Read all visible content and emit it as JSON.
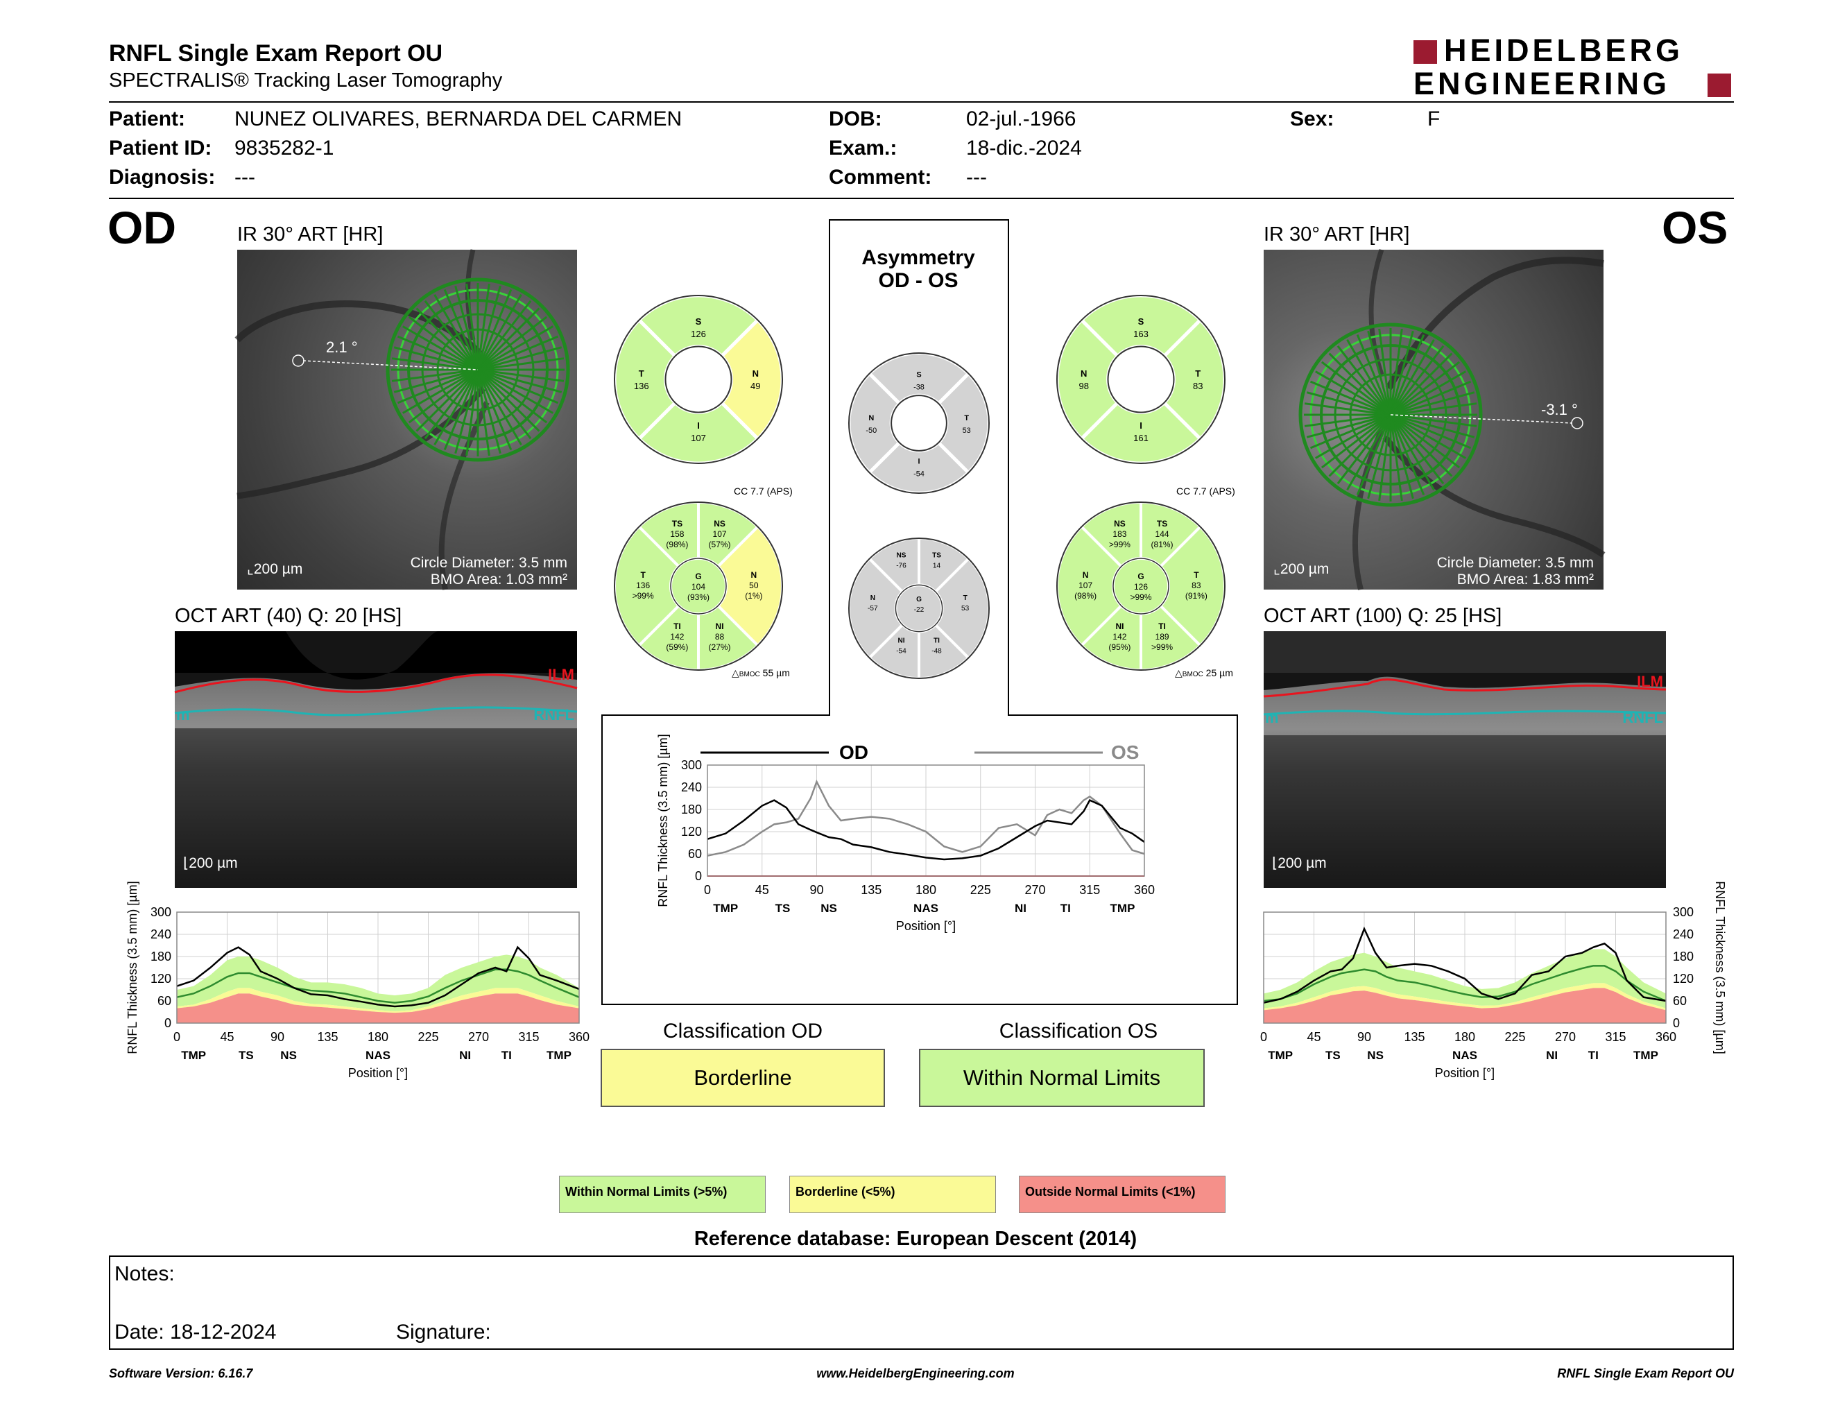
{
  "header": {
    "title": "RNFL Single Exam Report OU",
    "subtitle": "SPECTRALIS® Tracking Laser Tomography",
    "logo_line1": "HEIDELBERG",
    "logo_line2": "ENGINEERING",
    "brand_color": "#9b1b30"
  },
  "patient": {
    "patient_label": "Patient:",
    "patient_value": "NUNEZ OLIVARES, BERNARDA DEL CARMEN",
    "id_label": "Patient ID:",
    "id_value": "9835282-1",
    "diagnosis_label": "Diagnosis:",
    "diagnosis_value": "---",
    "dob_label": "DOB:",
    "dob_value": "02-jul.-1966",
    "exam_label": "Exam.:",
    "exam_value": "18-dic.-2024",
    "comment_label": "Comment:",
    "comment_value": "---",
    "sex_label": "Sex:",
    "sex_value": "F"
  },
  "od": {
    "eye": "OD",
    "ir_label": "IR 30° ART [HR]",
    "angle": "2.1 °",
    "scale": "200 µm",
    "circle_diameter": "Circle Diameter: 3.5 mm",
    "bmo_area": "BMO Area: 1.03 mm²",
    "oct_label": "OCT ART (40) Q: 20 [HS]",
    "oct_scale": "200 µm",
    "ilm": "ILM",
    "rnfl": "RNFL",
    "m": "m"
  },
  "os": {
    "eye": "OS",
    "ir_label": "IR 30° ART [HR]",
    "angle": "-3.1 °",
    "scale": "200 µm",
    "circle_diameter": "Circle Diameter: 3.5 mm",
    "bmo_area": "BMO Area: 1.83 mm²",
    "oct_label": "OCT ART (100) Q: 25 [HS]",
    "oct_scale": "200 µm",
    "ilm": "ILM",
    "rnfl": "RNFL",
    "m": "m"
  },
  "colors": {
    "normal": "#c9f79a",
    "borderline": "#fafa96",
    "outside": "#f5908a",
    "asym_gray": "#d3d3d3",
    "seg_green": "#2e8b2e",
    "ilm_red": "#e8141e",
    "rnfl_teal": "#1fb4b4"
  },
  "sectors": {
    "od_4": {
      "S": "126",
      "N": "49",
      "I": "107",
      "T": "136"
    },
    "od_6": {
      "TS": {
        "v": "158",
        "p": "(98%)"
      },
      "NS": {
        "v": "107",
        "p": "(57%)"
      },
      "N": {
        "v": "50",
        "p": "(1%)"
      },
      "NI": {
        "v": "88",
        "p": "(27%)"
      },
      "TI": {
        "v": "142",
        "p": "(59%)"
      },
      "T": {
        "v": "136",
        "p": ">99%"
      },
      "G": {
        "v": "104",
        "p": "(93%)"
      }
    },
    "od_cc": "CC 7.7 (APS)",
    "od_bmoc": "55 µm",
    "os_4": {
      "S": "163",
      "N": "98",
      "T": "83",
      "I": "161"
    },
    "os_6": {
      "NS": {
        "v": "183",
        "p": ">99%"
      },
      "TS": {
        "v": "144",
        "p": "(81%)"
      },
      "N": {
        "v": "107",
        "p": "(98%)"
      },
      "T": {
        "v": "83",
        "p": "(91%)"
      },
      "NI": {
        "v": "142",
        "p": "(95%)"
      },
      "TI": {
        "v": "189",
        "p": ">99%"
      },
      "G": {
        "v": "126",
        "p": ">99%"
      }
    },
    "os_cc": "CC 7.7 (APS)",
    "os_bmoc": "25 µm",
    "bmoc_word": "BMOC",
    "asym_title1": "Asymmetry",
    "asym_title2": "OD - OS",
    "asym_4": {
      "S": "-38",
      "N": "-50",
      "T": "53",
      "I": "-54"
    },
    "asym_6": {
      "NS": "-76",
      "TS": "14",
      "N": "-57",
      "G": "-22",
      "T": "53",
      "NI": "-54",
      "TI": "-48"
    }
  },
  "chart_data": [
    {
      "type": "line",
      "name": "od_profile",
      "ylabel": "RNFL Thickness (3.5 mm) [µm]",
      "xlabel": "Position [°]",
      "xlim": [
        0,
        360
      ],
      "ylim": [
        0,
        300
      ],
      "xticks": [
        0,
        45,
        90,
        135,
        180,
        225,
        270,
        315,
        360
      ],
      "yticks": [
        0,
        60,
        120,
        180,
        240,
        300
      ],
      "region_labels": [
        {
          "x": 15,
          "t": "TMP"
        },
        {
          "x": 62,
          "t": "TS"
        },
        {
          "x": 100,
          "t": "NS"
        },
        {
          "x": 180,
          "t": "NAS"
        },
        {
          "x": 258,
          "t": "NI"
        },
        {
          "x": 295,
          "t": "TI"
        },
        {
          "x": 342,
          "t": "TMP"
        }
      ],
      "x": [
        0,
        15,
        30,
        45,
        55,
        65,
        75,
        90,
        105,
        120,
        135,
        150,
        165,
        180,
        195,
        210,
        225,
        240,
        255,
        270,
        285,
        295,
        305,
        315,
        325,
        340,
        360
      ],
      "series": [
        {
          "role": "measured",
          "values": [
            100,
            115,
            150,
            190,
            205,
            185,
            140,
            120,
            95,
            78,
            75,
            65,
            58,
            50,
            45,
            48,
            55,
            75,
            105,
            135,
            150,
            140,
            205,
            175,
            130,
            115,
            92
          ]
        },
        {
          "role": "mean",
          "values": [
            70,
            80,
            100,
            125,
            135,
            135,
            125,
            110,
            95,
            88,
            85,
            80,
            70,
            60,
            55,
            60,
            72,
            95,
            115,
            130,
            145,
            145,
            140,
            130,
            115,
            95,
            70
          ]
        },
        {
          "role": "upper_normal",
          "values": [
            90,
            100,
            130,
            170,
            180,
            180,
            170,
            150,
            125,
            110,
            110,
            105,
            95,
            80,
            75,
            80,
            95,
            130,
            150,
            165,
            180,
            185,
            180,
            170,
            150,
            130,
            95
          ]
        },
        {
          "role": "lower_normal",
          "values": [
            45,
            50,
            65,
            85,
            95,
            95,
            85,
            75,
            60,
            52,
            50,
            45,
            40,
            35,
            32,
            35,
            45,
            60,
            75,
            85,
            95,
            95,
            95,
            85,
            75,
            60,
            45
          ]
        },
        {
          "role": "lower_borderline",
          "values": [
            40,
            45,
            55,
            70,
            80,
            80,
            72,
            62,
            50,
            45,
            42,
            38,
            34,
            30,
            28,
            30,
            38,
            50,
            62,
            72,
            80,
            80,
            80,
            72,
            62,
            50,
            40
          ]
        }
      ]
    },
    {
      "type": "line",
      "name": "comparison",
      "ylabel": "RNFL Thickness (3.5 mm) [µm]",
      "xlabel": "Position [°]",
      "xlim": [
        0,
        360
      ],
      "ylim": [
        0,
        300
      ],
      "xticks": [
        0,
        45,
        90,
        135,
        180,
        225,
        270,
        315,
        360
      ],
      "yticks": [
        0,
        60,
        120,
        180,
        240,
        300
      ],
      "region_labels": [
        {
          "x": 15,
          "t": "TMP"
        },
        {
          "x": 62,
          "t": "TS"
        },
        {
          "x": 100,
          "t": "NS"
        },
        {
          "x": 180,
          "t": "NAS"
        },
        {
          "x": 258,
          "t": "NI"
        },
        {
          "x": 295,
          "t": "TI"
        },
        {
          "x": 342,
          "t": "TMP"
        }
      ],
      "legend_od": "OD",
      "legend_os": "OS",
      "x": [
        0,
        15,
        30,
        45,
        55,
        65,
        75,
        85,
        90,
        100,
        110,
        120,
        135,
        150,
        165,
        180,
        195,
        210,
        225,
        240,
        255,
        270,
        280,
        290,
        300,
        310,
        315,
        325,
        340,
        350,
        360
      ],
      "series": [
        {
          "name": "OD",
          "values": [
            100,
            115,
            150,
            190,
            205,
            185,
            140,
            125,
            118,
            105,
            100,
            85,
            78,
            65,
            58,
            50,
            45,
            48,
            55,
            75,
            105,
            135,
            150,
            145,
            140,
            175,
            205,
            190,
            130,
            115,
            92
          ]
        },
        {
          "name": "OS",
          "values": [
            55,
            65,
            85,
            120,
            140,
            145,
            155,
            210,
            255,
            190,
            150,
            155,
            160,
            155,
            140,
            120,
            80,
            65,
            80,
            130,
            140,
            110,
            165,
            180,
            170,
            205,
            215,
            190,
            115,
            70,
            60
          ]
        }
      ]
    },
    {
      "type": "line",
      "name": "os_profile",
      "ylabel": "RNFL Thickness (3.5 mm) [µm]",
      "xlabel": "Position [°]",
      "xlim": [
        0,
        360
      ],
      "ylim": [
        0,
        300
      ],
      "xticks": [
        0,
        45,
        90,
        135,
        180,
        225,
        270,
        315,
        360
      ],
      "yticks": [
        0,
        60,
        120,
        180,
        240,
        300
      ],
      "region_labels": [
        {
          "x": 15,
          "t": "TMP"
        },
        {
          "x": 62,
          "t": "TS"
        },
        {
          "x": 100,
          "t": "NS"
        },
        {
          "x": 180,
          "t": "NAS"
        },
        {
          "x": 258,
          "t": "NI"
        },
        {
          "x": 295,
          "t": "TI"
        },
        {
          "x": 342,
          "t": "TMP"
        }
      ],
      "x": [
        0,
        15,
        30,
        45,
        60,
        70,
        80,
        90,
        100,
        110,
        120,
        135,
        150,
        165,
        180,
        195,
        210,
        225,
        240,
        255,
        270,
        285,
        295,
        305,
        315,
        325,
        340,
        360
      ],
      "series": [
        {
          "role": "measured",
          "values": [
            55,
            65,
            85,
            115,
            140,
            145,
            175,
            255,
            190,
            150,
            155,
            160,
            155,
            140,
            120,
            80,
            65,
            80,
            130,
            140,
            180,
            190,
            205,
            215,
            190,
            115,
            70,
            60
          ]
        },
        {
          "role": "mean",
          "values": [
            60,
            65,
            80,
            105,
            125,
            135,
            140,
            145,
            140,
            125,
            115,
            110,
            100,
            88,
            78,
            70,
            72,
            85,
            105,
            120,
            135,
            148,
            155,
            155,
            140,
            115,
            85,
            60
          ]
        },
        {
          "role": "upper_normal",
          "values": [
            80,
            90,
            110,
            140,
            165,
            175,
            185,
            190,
            180,
            165,
            150,
            140,
            130,
            115,
            100,
            92,
            95,
            110,
            135,
            155,
            175,
            190,
            200,
            200,
            180,
            150,
            110,
            80
          ]
        },
        {
          "role": "lower_normal",
          "values": [
            40,
            45,
            55,
            70,
            85,
            92,
            98,
            100,
            95,
            85,
            78,
            72,
            65,
            58,
            52,
            47,
            48,
            57,
            70,
            82,
            95,
            103,
            108,
            108,
            95,
            78,
            58,
            40
          ]
        },
        {
          "role": "lower_borderline",
          "values": [
            35,
            40,
            48,
            60,
            75,
            80,
            86,
            88,
            82,
            74,
            67,
            62,
            56,
            50,
            45,
            40,
            42,
            50,
            60,
            72,
            83,
            90,
            95,
            95,
            84,
            68,
            50,
            35
          ]
        }
      ]
    }
  ],
  "classification": {
    "od_title": "Classification OD",
    "od_value": "Borderline",
    "os_title": "Classification OS",
    "os_value": "Within Normal Limits"
  },
  "legend": {
    "normal": "Within Normal Limits (>5%)",
    "borderline": "Borderline (<5%)",
    "outside": "Outside Normal Limits (<1%)"
  },
  "reference": "Reference database: European Descent (2014)",
  "notes": {
    "notes_label": "Notes:",
    "date_label": "Date: 18-12-2024",
    "signature_label": "Signature:"
  },
  "footer": {
    "version": "Software Version: 6.16.7",
    "url": "www.HeidelbergEngineering.com",
    "report": "RNFL Single Exam Report OU"
  }
}
